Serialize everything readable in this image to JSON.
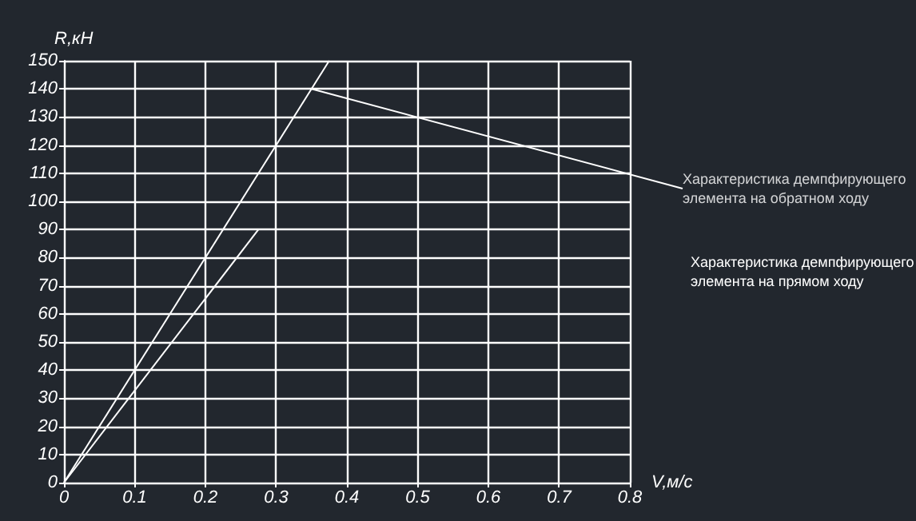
{
  "chart_data": {
    "type": "line",
    "xlabel": "V,м/с",
    "ylabel": "R,кН",
    "series": [
      {
        "color": "#ffffff",
        "x": [
          0,
          0.375
        ],
        "values": [
          0,
          150
        ]
      },
      {
        "color": "#ffffff",
        "x": [
          0,
          0.275
        ],
        "values": [
          0,
          90
        ]
      }
    ],
    "xlim": [
      0,
      0.8
    ],
    "xticks": [
      0,
      0.1,
      0.2,
      0.3,
      0.4,
      0.5,
      0.6,
      0.7,
      0.8
    ],
    "ylim": [
      0,
      150
    ],
    "yticks": [
      0,
      10,
      20,
      30,
      40,
      50,
      60,
      70,
      80,
      90,
      100,
      110,
      120,
      130,
      140,
      150
    ],
    "grid": true,
    "marker": "none",
    "line_style": "solid",
    "annotations": [
      {
        "text": "Характеристика демпфирующего\nэлемента на обратном ходу",
        "x": 0.35,
        "y": 140
      },
      "Характеристика демпфирующего\nэлемента на прямом ходу"
    ]
  }
}
